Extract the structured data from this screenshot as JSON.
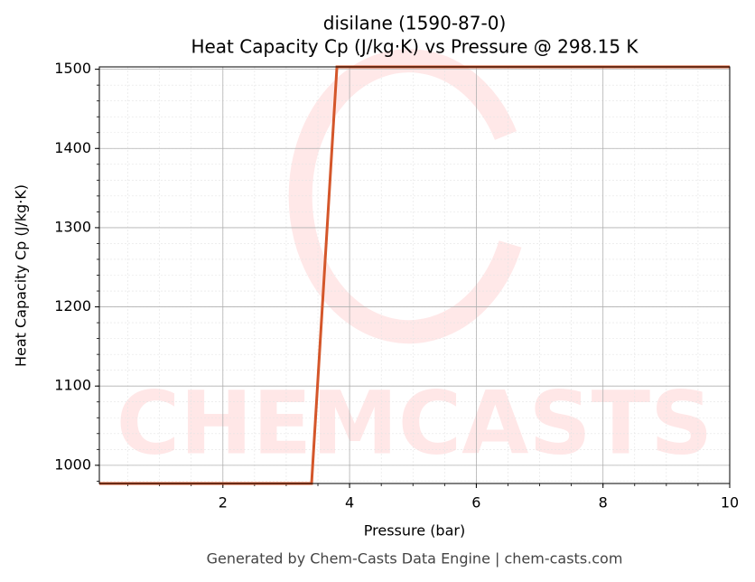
{
  "chart_data": {
    "type": "line",
    "title": "disilane (1590-87-0)",
    "subtitle": "Heat Capacity Cp (J/kg·K) vs Pressure @ 298.15 K",
    "x_label": "Pressure (bar)",
    "y_label": "Heat Capacity Cp (J/kg·K)",
    "footer": "Generated by Chem-Casts Data Engine | chem-casts.com",
    "watermark": "CHEMCASTS",
    "x": [
      0.05,
      3.4,
      3.8,
      10
    ],
    "series": [
      {
        "name": "Heat Capacity Cp",
        "color": "#d4562a",
        "values": [
          977,
          977,
          1503,
          1503
        ]
      }
    ],
    "xlim": [
      0.05,
      10
    ],
    "ylim": [
      977,
      1503
    ],
    "xticks": [
      2,
      4,
      6,
      8,
      10
    ],
    "yticks": [
      1000,
      1100,
      1200,
      1300,
      1400,
      1500
    ],
    "grid": true,
    "minor_grid": true
  }
}
